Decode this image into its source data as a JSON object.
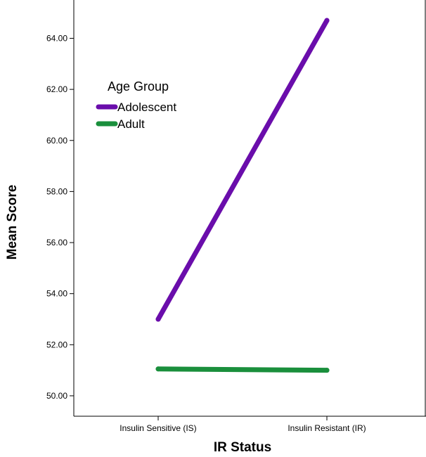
{
  "chart_data": {
    "type": "line",
    "categories": [
      "Insulin Sensitive (IS)",
      "Insulin Resistant (IR)"
    ],
    "series": [
      {
        "name": "Adolescent",
        "values": [
          53.0,
          64.7
        ],
        "color": "#6a0dab"
      },
      {
        "name": "Adult",
        "values": [
          51.05,
          51.0
        ],
        "color": "#1a8f3c"
      }
    ],
    "title": "",
    "xlabel": "IR Status",
    "ylabel": "Mean Score",
    "ylim": [
      49.2,
      65.5
    ],
    "yticks": [
      50.0,
      52.0,
      54.0,
      56.0,
      58.0,
      60.0,
      62.0,
      64.0
    ],
    "ytick_labels": [
      "50.00",
      "52.00",
      "54.00",
      "56.00",
      "58.00",
      "60.00",
      "62.00",
      "64.00"
    ],
    "legend": {
      "title": "Age Group",
      "placement": "top-left",
      "entries": [
        "Adolescent",
        "Adult"
      ]
    },
    "grid": false
  }
}
